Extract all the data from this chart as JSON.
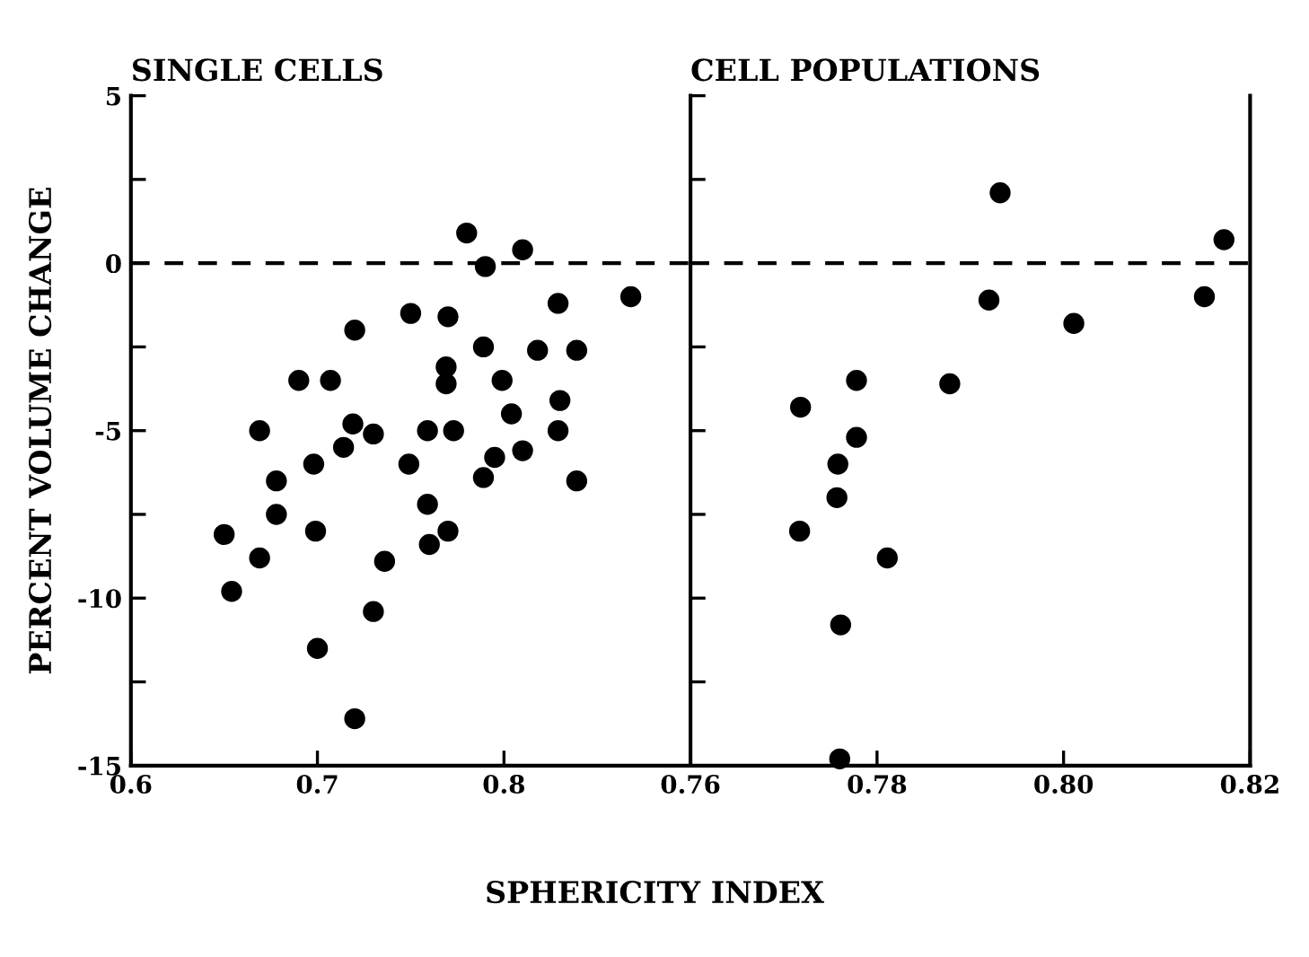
{
  "chart_data": [
    {
      "type": "scatter",
      "title": "SINGLE CELLS",
      "ylabel": "PERCENT VOLUME CHANGE",
      "xlabel": "SPHERICITY INDEX",
      "marker": "circle",
      "grid": false,
      "legend": false,
      "xlim": [
        0.6,
        0.9
      ],
      "xticks": [
        0.6,
        0.7,
        0.8,
        {
          "value": 0.9,
          "label": null
        }
      ],
      "ylim": [
        -15,
        5
      ],
      "yticks": [
        -15,
        {
          "value": -12.5,
          "label": null
        },
        -10,
        {
          "value": -7.5,
          "label": null
        },
        -5,
        {
          "value": -2.5,
          "label": null
        },
        0,
        {
          "value": 2.5,
          "label": null
        },
        5
      ],
      "ref_lines": [
        {
          "axis": "y",
          "value": 0,
          "line_style": "dashed",
          "color": "#000000"
        }
      ],
      "series": [
        {
          "color": "#000000",
          "x": [
            0.78,
            0.81,
            0.79,
            0.829,
            0.868,
            0.75,
            0.77,
            0.72,
            0.789,
            0.818,
            0.839,
            0.769,
            0.769,
            0.69,
            0.707,
            0.799,
            0.83,
            0.804,
            0.669,
            0.719,
            0.73,
            0.759,
            0.773,
            0.829,
            0.714,
            0.81,
            0.698,
            0.749,
            0.795,
            0.789,
            0.839,
            0.678,
            0.678,
            0.759,
            0.65,
            0.699,
            0.77,
            0.76,
            0.669,
            0.736,
            0.654,
            0.73,
            0.7,
            0.72
          ],
          "values": [
            0.9,
            0.4,
            -0.1,
            -1.2,
            -1.0,
            -1.5,
            -1.6,
            -2.0,
            -2.5,
            -2.6,
            -2.6,
            -3.1,
            -3.6,
            -3.5,
            -3.5,
            -3.5,
            -4.1,
            -4.5,
            -5.0,
            -4.8,
            -5.1,
            -5.0,
            -5.0,
            -5.0,
            -5.5,
            -5.6,
            -6.0,
            -6.0,
            -5.8,
            -6.4,
            -6.5,
            -6.5,
            -7.5,
            -7.2,
            -8.1,
            -8.0,
            -8.0,
            -8.4,
            -8.8,
            -8.9,
            -9.8,
            -10.4,
            -11.5,
            -13.6
          ]
        }
      ]
    },
    {
      "type": "scatter",
      "title": "CELL POPULATIONS",
      "marker": "circle",
      "grid": false,
      "legend": false,
      "tick_labels": "x",
      "xlim": [
        0.76,
        0.82
      ],
      "xticks": [
        0.76,
        0.78,
        {
          "value": 0.8,
          "label": "0.80"
        },
        0.82
      ],
      "ylim": [
        -15,
        5
      ],
      "yticks": [
        -15,
        {
          "value": -12.5,
          "label": null
        },
        -10,
        {
          "value": -7.5,
          "label": null
        },
        -5,
        {
          "value": -2.5,
          "label": null
        },
        0,
        {
          "value": 2.5,
          "label": null
        },
        5
      ],
      "ref_lines": [
        {
          "axis": "y",
          "value": 0,
          "line_style": "dashed",
          "color": "#000000"
        }
      ],
      "series": [
        {
          "color": "#000000",
          "x": [
            0.7932,
            0.8172,
            0.792,
            0.8151,
            0.8011,
            0.7778,
            0.7878,
            0.7718,
            0.7778,
            0.7758,
            0.7757,
            0.7717,
            0.7811,
            0.7761,
            0.776
          ],
          "values": [
            2.1,
            0.7,
            -1.1,
            -1.0,
            -1.8,
            -3.5,
            -3.6,
            -4.3,
            -5.2,
            -6.0,
            -7.0,
            -8.0,
            -8.8,
            -10.8,
            -14.8
          ]
        }
      ]
    }
  ]
}
